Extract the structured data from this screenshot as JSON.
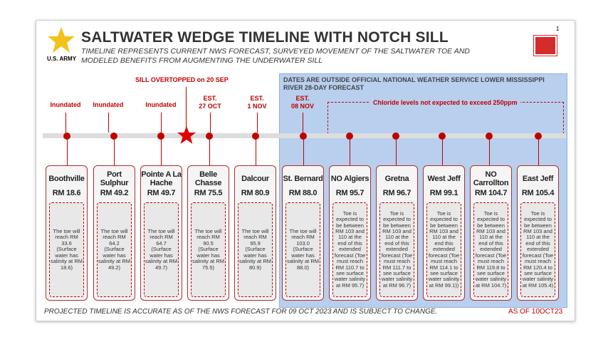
{
  "header": {
    "title": "SALTWATER WEDGE TIMELINE WITH NOTCH SILL",
    "subtitle": "TIMELINE REPRESENTS CURRENT NWS FORECAST, SURVEYED MOVEMENT OF THE SALTWATER TOE AND MODELED BENEFITS FROM AUGMENTING THE UNDERWATER SILL",
    "army": "U.S. ARMY",
    "page_number": "1"
  },
  "sill_note": "SILL OVERTOPPED on 20 SEP",
  "outside_note": "DATES ARE OUTSIDE OFFICIAL NATIONAL WEATHER SERVICE LOWER MISSISSIPPI RIVER 28-DAY FORECAST",
  "chloride_note": "Chloride levels not expected to exceed 250ppm",
  "markers": [
    "Inundated",
    "Inundated",
    "Inundated",
    "EST.\n27 OCT",
    "EST.\n1 NOV",
    "EST.\n08 NOV"
  ],
  "stations": [
    {
      "name": "Boothville",
      "rm": "RM 18.6",
      "note": "The toe will reach RM 33.6 (Surface water has salinity at RM 18.6)"
    },
    {
      "name": "Port Sulphur",
      "rm": "RM 49.2",
      "note": "The toe will reach RM 64.2 (Surface water has salinity at RM 49.2)"
    },
    {
      "name": "Pointe A La Hache",
      "rm": "RM 49.7",
      "note": "The toe will reach RM 64.7 (Surface water has salinity at RM 49.7)"
    },
    {
      "name": "Belle Chasse",
      "rm": "RM 75.5",
      "note": "The toe will reach RM 90.5 (Surface water has salinity at RM 75.5)"
    },
    {
      "name": "Dalcour",
      "rm": "RM 80.9",
      "note": "The toe will reach RM 95.9 (Surface water has salinity at RM 80.9)"
    },
    {
      "name": "St. Bernard",
      "rm": "RM 88.0",
      "note": "The toe will reach RM 103.0 (Surface water has salinity at RM 88.0)"
    },
    {
      "name": "NO Algiers",
      "rm": "RM 95.7",
      "note": "Toe is expected to be between RM 103 and 110 at the end of this extended forecast (Toe must reach RM 110.7 to see surface water salinity at RM 95.7)"
    },
    {
      "name": "Gretna",
      "rm": "RM 96.7",
      "note": "Toe is expected to be between RM 103 and 110 at the end of this extended forecast (Toe must reach RM 111.7 to see surface water salinity at RM 96.7)"
    },
    {
      "name": "West Jeff",
      "rm": "RM 99.1",
      "note": "Toe is expected to be between RM 103 and 110 at the end this extended forecast (Toe must reach RM 114.1 to see surface water salinity at RM 99.1))"
    },
    {
      "name": "NO Carrollton",
      "rm": "RM 104.7",
      "note": "Toe is expected to be between RM 103 and 110 at the end of this extended forecast (Toe must reach RM 119.8 to see surface water salinity at RM 104.7)"
    },
    {
      "name": "East Jeff",
      "rm": "RM 105.4",
      "note": "Toe is expected to be between RM 103 and 110 at the end of this extended forecast (Toe must reach RM 120.4 to see surface water salinity at RM 105.4)"
    }
  ],
  "footer": {
    "text": "PROJECTED TIMELINE IS ACCURATE AS OF THE NWS FORECAST FOR 09 OCT 2023 AND IS SUBJECT TO CHANGE.",
    "as_of": "AS OF 10OCT23"
  },
  "colors": {
    "accent": "#c00000",
    "forecast_region": "#b8cfee",
    "army_star": "#f2c21b"
  }
}
